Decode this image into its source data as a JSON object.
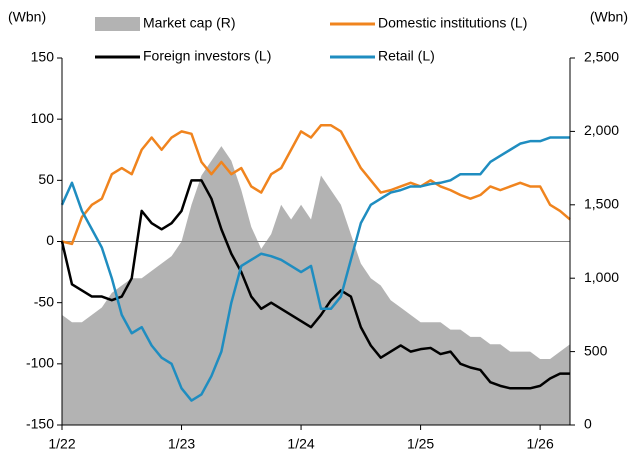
{
  "chart_data": {
    "type": "line",
    "ylabel": "(Wbn)",
    "y2label": "(Wbn)",
    "x": [
      0,
      1,
      2,
      3,
      4,
      5,
      6,
      7,
      8,
      9,
      10,
      11,
      12,
      13,
      14,
      15,
      16,
      17,
      18,
      19,
      20,
      21,
      22,
      23,
      24,
      25,
      26,
      27,
      28,
      29,
      30,
      31,
      32,
      33,
      34,
      35,
      36,
      37,
      38,
      39,
      40,
      41,
      42,
      43,
      44,
      45,
      46,
      47,
      48,
      49,
      50,
      51
    ],
    "xlim": [
      0,
      51
    ],
    "xticks": [
      {
        "value": 0,
        "label": "1/22"
      },
      {
        "value": 12,
        "label": "1/23"
      },
      {
        "value": 24,
        "label": "1/24"
      },
      {
        "value": 36,
        "label": "1/25"
      },
      {
        "value": 48,
        "label": "1/26"
      }
    ],
    "ylim": [
      -150,
      150
    ],
    "yticks": [
      -150,
      -100,
      -50,
      0,
      50,
      100,
      150
    ],
    "y2lim": [
      0,
      2500
    ],
    "y2ticks": [
      0,
      500,
      {
        "value": 1000,
        "label": "1,000"
      },
      {
        "value": 1500,
        "label": "1,500"
      },
      {
        "value": 2000,
        "label": "2,000"
      },
      {
        "value": 2500,
        "label": "2,500"
      }
    ],
    "series": [
      {
        "name": "Market cap  (R)",
        "type": "area",
        "axis": "y2",
        "color": "#b3b3b3",
        "values": [
          750,
          700,
          700,
          750,
          800,
          900,
          950,
          1000,
          1000,
          1050,
          1100,
          1150,
          1250,
          1500,
          1700,
          1800,
          1900,
          1800,
          1600,
          1350,
          1200,
          1300,
          1500,
          1400,
          1500,
          1400,
          1700,
          1600,
          1500,
          1300,
          1100,
          1000,
          950,
          850,
          800,
          750,
          700,
          700,
          700,
          650,
          650,
          600,
          600,
          550,
          550,
          500,
          500,
          500,
          450,
          450,
          500,
          550
        ]
      },
      {
        "name": "Domestic institutions (L)",
        "type": "line",
        "color": "#f0841e",
        "values": [
          0,
          -2,
          20,
          30,
          35,
          55,
          60,
          55,
          75,
          85,
          75,
          85,
          90,
          88,
          65,
          55,
          65,
          55,
          60,
          45,
          40,
          55,
          60,
          75,
          90,
          85,
          95,
          95,
          90,
          75,
          60,
          50,
          40,
          42,
          45,
          48,
          45,
          50,
          45,
          42,
          38,
          35,
          38,
          45,
          42,
          45,
          48,
          45,
          45,
          30,
          25,
          18
        ]
      },
      {
        "name": "Foreign investors (L)",
        "type": "line",
        "color": "#000000",
        "values": [
          0,
          -35,
          -40,
          -45,
          -45,
          -48,
          -45,
          -30,
          25,
          15,
          10,
          15,
          25,
          50,
          50,
          35,
          10,
          -10,
          -25,
          -45,
          -55,
          -50,
          -55,
          -60,
          -65,
          -70,
          -60,
          -48,
          -40,
          -45,
          -70,
          -85,
          -95,
          -90,
          -85,
          -90,
          -88,
          -87,
          -92,
          -90,
          -100,
          -103,
          -105,
          -115,
          -118,
          -120,
          -120,
          -120,
          -118,
          -112,
          -108,
          -108
        ]
      },
      {
        "name": "Retail (L)",
        "type": "line",
        "color": "#1f8dc0",
        "values": [
          30,
          48,
          25,
          10,
          -5,
          -30,
          -60,
          -75,
          -70,
          -85,
          -95,
          -100,
          -120,
          -130,
          -125,
          -110,
          -90,
          -50,
          -20,
          -15,
          -10,
          -12,
          -15,
          -20,
          -25,
          -20,
          -55,
          -55,
          -45,
          -15,
          15,
          30,
          35,
          40,
          42,
          45,
          45,
          47,
          48,
          50,
          55,
          55,
          55,
          65,
          70,
          75,
          80,
          82,
          82,
          85,
          85,
          85
        ]
      }
    ]
  }
}
